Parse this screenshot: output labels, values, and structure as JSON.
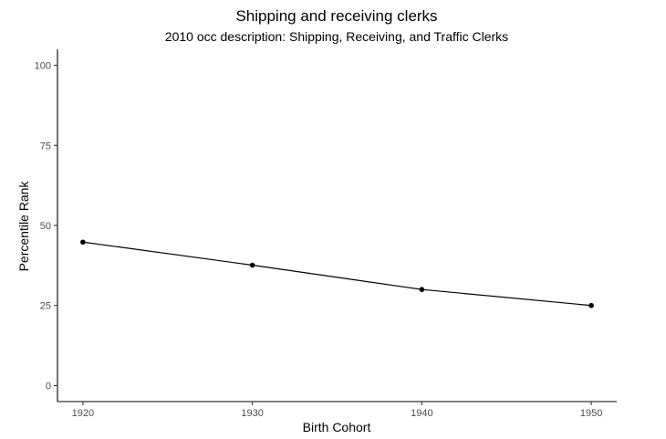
{
  "chart_data": {
    "type": "line",
    "title": "Shipping and receiving clerks",
    "subtitle": "2010 occ description: Shipping, Receiving, and Traffic Clerks",
    "xlabel": "Birth Cohort",
    "ylabel": "Percentile Rank",
    "x": [
      1920,
      1930,
      1940,
      1950
    ],
    "x_tick_labels": [
      "1920",
      "1930",
      "1940",
      "1950"
    ],
    "y_ticks": [
      0,
      25,
      50,
      75,
      100
    ],
    "y_tick_labels": [
      "0",
      "25",
      "50",
      "75",
      "100"
    ],
    "xlim": [
      1918.5,
      1951.5
    ],
    "ylim": [
      -5,
      105
    ],
    "series": [
      {
        "values": [
          44.8,
          37.6,
          30.0,
          25.0
        ],
        "color": "#000000"
      }
    ],
    "grid": false,
    "legend": "none"
  }
}
